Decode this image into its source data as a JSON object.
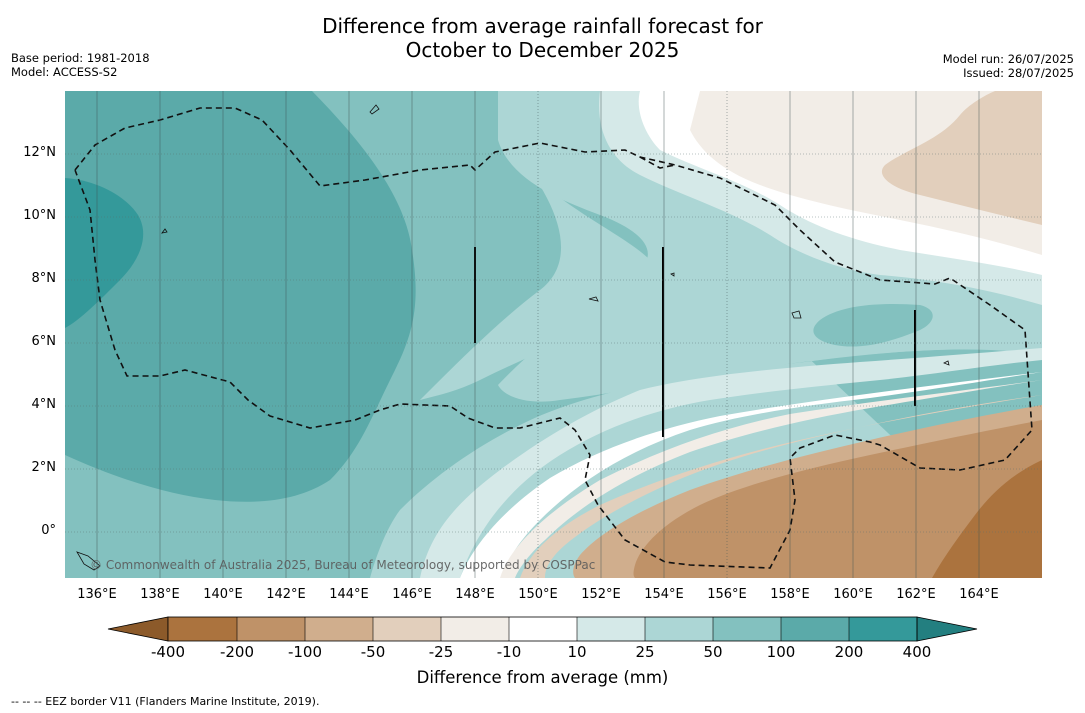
{
  "title_line1": "Difference from average rainfall forecast for",
  "title_line2": "October to December 2025",
  "meta_left": {
    "base_period": "Base period: 1981-2018",
    "model": "Model: ACCESS-S2"
  },
  "meta_right": {
    "model_run": "Model run: 26/07/2025",
    "issued": "Issued: 28/07/2025"
  },
  "copyright": "© Commonwealth of Australia 2025, Bureau of Meteorology, supported by COSPPac",
  "footnote": "--  --  -- EEZ border V11 (Flanders Marine Institute, 2019).",
  "map": {
    "lat_labels": [
      "12°N",
      "10°N",
      "8°N",
      "6°N",
      "4°N",
      "2°N",
      "0°"
    ],
    "lon_labels": [
      "136°E",
      "138°E",
      "140°E",
      "142°E",
      "144°E",
      "146°E",
      "148°E",
      "150°E",
      "152°E",
      "154°E",
      "156°E",
      "158°E",
      "160°E",
      "162°E",
      "164°E"
    ],
    "extent": {
      "lon_min": 135.0,
      "lon_max": 166.1,
      "lat_min": -1.5,
      "lat_max": 14.0
    }
  },
  "colorbar": {
    "title": "Difference from average (mm)",
    "tick_labels": [
      "-400",
      "-200",
      "-100",
      "-50",
      "-25",
      "-10",
      "10",
      "25",
      "50",
      "100",
      "200",
      "400"
    ],
    "colors": [
      "#8c5a2a",
      "#ab733e",
      "#bf9268",
      "#d0ae8d",
      "#e2cfbc",
      "#f2ede7",
      "#ffffff",
      "#d5e9e8",
      "#acd6d5",
      "#83c1bf",
      "#5baaa9",
      "#34999a",
      "#237f80"
    ]
  }
}
